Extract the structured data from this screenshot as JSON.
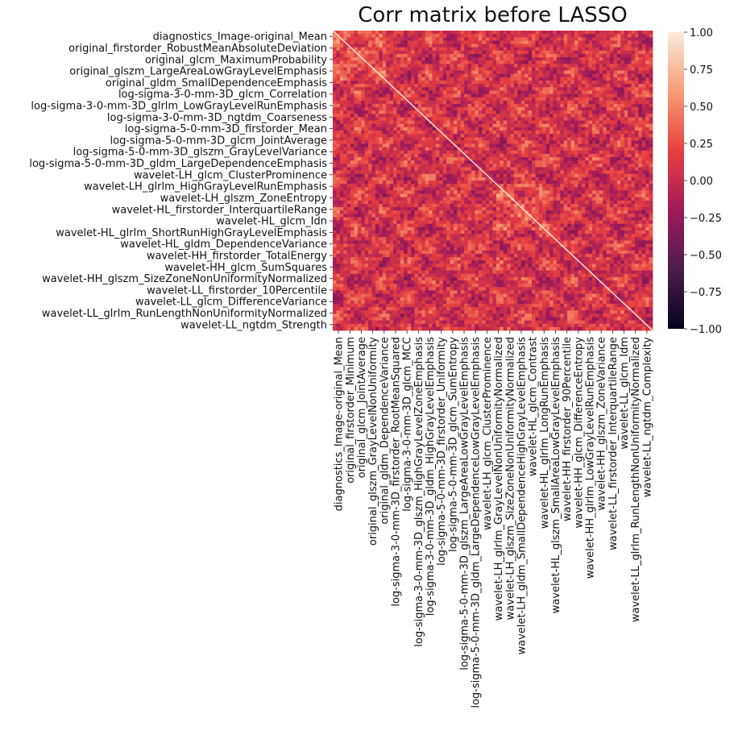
{
  "chart_data": {
    "type": "heatmap",
    "title": "Corr matrix before LASSO",
    "xlabel": "",
    "ylabel": "",
    "grid": false,
    "y_tick_labels": [
      "diagnostics_Image-original_Mean",
      "original_firstorder_RobustMeanAbsoluteDeviation",
      "original_glcm_MaximumProbability",
      "original_glszm_LargeAreaLowGrayLevelEmphasis",
      "original_gldm_SmallDependenceEmphasis",
      "log-sigma-3-0-mm-3D_glcm_Correlation",
      "log-sigma-3-0-mm-3D_glrlm_LowGrayLevelRunEmphasis",
      "log-sigma-3-0-mm-3D_ngtdm_Coarseness",
      "log-sigma-5-0-mm-3D_firstorder_Mean",
      "log-sigma-5-0-mm-3D_glcm_JointAverage",
      "log-sigma-5-0-mm-3D_glszm_GrayLevelVariance",
      "log-sigma-5-0-mm-3D_gldm_LargeDependenceEmphasis",
      "wavelet-LH_glcm_ClusterProminence",
      "wavelet-LH_glrlm_HighGrayLevelRunEmphasis",
      "wavelet-LH_glszm_ZoneEntropy",
      "wavelet-HL_firstorder_InterquartileRange",
      "wavelet-HL_glcm_Idn",
      "wavelet-HL_glrlm_ShortRunHighGrayLevelEmphasis",
      "wavelet-HL_gldm_DependenceVariance",
      "wavelet-HH_firstorder_TotalEnergy",
      "wavelet-HH_glcm_SumSquares",
      "wavelet-HH_glszm_SizeZoneNonUniformityNormalized",
      "wavelet-LL_firstorder_10Percentile",
      "wavelet-LL_glcm_DifferenceVariance",
      "wavelet-LL_glrlm_RunLengthNonUniformityNormalized",
      "wavelet-LL_ngtdm_Strength"
    ],
    "x_tick_labels": [
      "diagnostics_Image-original_Mean",
      "original_firstorder_Minimum",
      "original_glcm_JointAverage",
      "original_glszm_GrayLevelNonUniformity",
      "original_gldm_DependenceVariance",
      "log-sigma-3-0-mm-3D_firstorder_RootMeanSquared",
      "log-sigma-3-0-mm-3D_glcm_MCC",
      "log-sigma-3-0-mm-3D_glszm_HighGrayLevelZoneEmphasis",
      "log-sigma-3-0-mm-3D_gldm_HighGrayLevelEmphasis",
      "log-sigma-5-0-mm-3D_firstorder_Uniformity",
      "log-sigma-5-0-mm-3D_glcm_SumEntropy",
      "log-sigma-5-0-mm-3D_glszm_LargeAreaLowGrayLevelEmphasis",
      "log-sigma-5-0-mm-3D_gldm_LargeDependenceLowGrayLevelEmphasis",
      "wavelet-LH_glcm_ClusterProminence",
      "wavelet-LH_glrlm_GrayLevelNonUniformityNormalized",
      "wavelet-LH_glszm_SizeZoneNonUniformityNormalized",
      "wavelet-LH_gldm_SmallDependenceHighGrayLevelEmphasis",
      "wavelet-HL_glcm_Contrast",
      "wavelet-HL_glrlm_LongRunEmphasis",
      "wavelet-HL_glszm_SmallAreaLowGrayLevelEmphasis",
      "wavelet-HH_firstorder_90Percentile",
      "wavelet-HH_glcm_DifferenceEntropy",
      "wavelet-HH_glrlm_LowGrayLevelRunEmphasis",
      "wavelet-HH_glszm_ZoneVariance",
      "wavelet-LL_firstorder_InterquartileRange",
      "wavelet-LL_glcm_Idm",
      "wavelet-LL_glrlm_RunLengthNonUniformityNormalized",
      "wavelet-LL_ngtdm_Complexity"
    ],
    "colorbar": {
      "vmin": -1.0,
      "vmax": 1.0,
      "ticks": [
        1.0,
        0.75,
        0.5,
        0.25,
        0.0,
        -0.25,
        -0.5,
        -0.75,
        -1.0
      ],
      "tick_labels": [
        "1.00",
        "0.75",
        "0.50",
        "0.25",
        "0.00",
        "−0.25",
        "−0.50",
        "−0.75",
        "−1.00"
      ]
    },
    "colormap": [
      "#03051a",
      "#4c1d4b",
      "#a11a5b",
      "#e83f3f",
      "#f69c73",
      "#faebdd"
    ],
    "matrix_note": "diagonal equals 1.0; most off-diagonal correlations lie between about -0.2 and 0.6"
  }
}
